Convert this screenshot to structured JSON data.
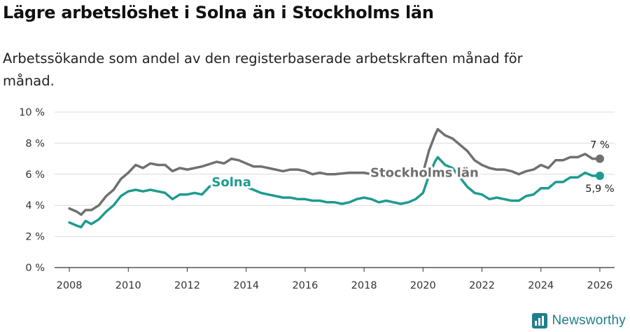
{
  "title": "Lägre arbetslöshet i Solna än i Stockholms län",
  "subtitle": "Arbetssökande som andel av den registerbaserade arbetskraften månad för månad.",
  "brand": {
    "name": "Newsworthy",
    "icon": "newsworthy-logo-icon",
    "color": "#1f7f8a"
  },
  "chart_data": {
    "type": "line",
    "xlim": [
      2007.5,
      2026.5
    ],
    "ylim": [
      0,
      10
    ],
    "x_ticks": [
      2008,
      2010,
      2012,
      2014,
      2016,
      2018,
      2020,
      2022,
      2024,
      2026
    ],
    "y_ticks": [
      0,
      2,
      4,
      6,
      8,
      10
    ],
    "y_tick_labels": [
      "0 %",
      "2 %",
      "4 %",
      "6 %",
      "8 %",
      "10 %"
    ],
    "grid": true,
    "series": [
      {
        "name": "Stockholms län",
        "color": "#707070",
        "end_label": "7 %",
        "points": [
          [
            2008.0,
            3.8
          ],
          [
            2008.25,
            3.6
          ],
          [
            2008.4,
            3.4
          ],
          [
            2008.55,
            3.7
          ],
          [
            2008.75,
            3.7
          ],
          [
            2009.0,
            4.0
          ],
          [
            2009.25,
            4.6
          ],
          [
            2009.5,
            5.0
          ],
          [
            2009.75,
            5.7
          ],
          [
            2010.0,
            6.1
          ],
          [
            2010.25,
            6.6
          ],
          [
            2010.5,
            6.4
          ],
          [
            2010.75,
            6.7
          ],
          [
            2011.0,
            6.6
          ],
          [
            2011.25,
            6.6
          ],
          [
            2011.5,
            6.2
          ],
          [
            2011.75,
            6.4
          ],
          [
            2012.0,
            6.3
          ],
          [
            2012.5,
            6.5
          ],
          [
            2013.0,
            6.8
          ],
          [
            2013.25,
            6.7
          ],
          [
            2013.5,
            7.0
          ],
          [
            2013.75,
            6.9
          ],
          [
            2014.0,
            6.7
          ],
          [
            2014.25,
            6.5
          ],
          [
            2014.5,
            6.5
          ],
          [
            2014.75,
            6.4
          ],
          [
            2015.0,
            6.3
          ],
          [
            2015.25,
            6.2
          ],
          [
            2015.5,
            6.3
          ],
          [
            2015.75,
            6.3
          ],
          [
            2016.0,
            6.2
          ],
          [
            2016.25,
            6.0
          ],
          [
            2016.5,
            6.1
          ],
          [
            2016.75,
            6.0
          ],
          [
            2017.0,
            6.0
          ],
          [
            2017.5,
            6.1
          ],
          [
            2018.0,
            6.1
          ],
          [
            2018.25,
            6.0
          ],
          [
            2018.5,
            5.9
          ],
          [
            2018.75,
            6.0
          ],
          [
            2019.0,
            5.9
          ],
          [
            2019.25,
            5.8
          ],
          [
            2019.5,
            5.9
          ],
          [
            2019.75,
            6.0
          ],
          [
            2020.0,
            6.1
          ],
          [
            2020.2,
            7.5
          ],
          [
            2020.4,
            8.5
          ],
          [
            2020.5,
            8.9
          ],
          [
            2020.75,
            8.5
          ],
          [
            2021.0,
            8.3
          ],
          [
            2021.25,
            7.9
          ],
          [
            2021.5,
            7.5
          ],
          [
            2021.75,
            6.9
          ],
          [
            2022.0,
            6.6
          ],
          [
            2022.25,
            6.4
          ],
          [
            2022.5,
            6.3
          ],
          [
            2022.75,
            6.3
          ],
          [
            2023.0,
            6.2
          ],
          [
            2023.25,
            6.0
          ],
          [
            2023.5,
            6.2
          ],
          [
            2023.75,
            6.3
          ],
          [
            2024.0,
            6.6
          ],
          [
            2024.25,
            6.4
          ],
          [
            2024.5,
            6.9
          ],
          [
            2024.75,
            6.9
          ],
          [
            2025.0,
            7.1
          ],
          [
            2025.25,
            7.1
          ],
          [
            2025.5,
            7.3
          ],
          [
            2025.75,
            7.0
          ],
          [
            2026.0,
            7.0
          ]
        ]
      },
      {
        "name": "Solna",
        "color": "#1e9b8f",
        "end_label": "5,9 %",
        "points": [
          [
            2008.0,
            2.9
          ],
          [
            2008.25,
            2.7
          ],
          [
            2008.4,
            2.6
          ],
          [
            2008.55,
            3.0
          ],
          [
            2008.75,
            2.8
          ],
          [
            2009.0,
            3.1
          ],
          [
            2009.25,
            3.6
          ],
          [
            2009.5,
            4.0
          ],
          [
            2009.75,
            4.6
          ],
          [
            2010.0,
            4.9
          ],
          [
            2010.25,
            5.0
          ],
          [
            2010.5,
            4.9
          ],
          [
            2010.75,
            5.0
          ],
          [
            2011.0,
            4.9
          ],
          [
            2011.25,
            4.8
          ],
          [
            2011.5,
            4.4
          ],
          [
            2011.75,
            4.7
          ],
          [
            2012.0,
            4.7
          ],
          [
            2012.25,
            4.8
          ],
          [
            2012.5,
            4.7
          ],
          [
            2012.75,
            5.2
          ],
          [
            2013.0,
            5.5
          ],
          [
            2013.25,
            5.4
          ],
          [
            2013.5,
            5.5
          ],
          [
            2013.75,
            5.3
          ],
          [
            2014.0,
            5.2
          ],
          [
            2014.25,
            5.0
          ],
          [
            2014.5,
            4.8
          ],
          [
            2014.75,
            4.7
          ],
          [
            2015.0,
            4.6
          ],
          [
            2015.25,
            4.5
          ],
          [
            2015.5,
            4.5
          ],
          [
            2015.75,
            4.4
          ],
          [
            2016.0,
            4.4
          ],
          [
            2016.25,
            4.3
          ],
          [
            2016.5,
            4.3
          ],
          [
            2016.75,
            4.2
          ],
          [
            2017.0,
            4.2
          ],
          [
            2017.25,
            4.1
          ],
          [
            2017.5,
            4.2
          ],
          [
            2017.75,
            4.4
          ],
          [
            2018.0,
            4.5
          ],
          [
            2018.25,
            4.4
          ],
          [
            2018.5,
            4.2
          ],
          [
            2018.75,
            4.3
          ],
          [
            2019.0,
            4.2
          ],
          [
            2019.25,
            4.1
          ],
          [
            2019.5,
            4.2
          ],
          [
            2019.75,
            4.4
          ],
          [
            2020.0,
            4.8
          ],
          [
            2020.2,
            5.9
          ],
          [
            2020.4,
            6.8
          ],
          [
            2020.5,
            7.1
          ],
          [
            2020.75,
            6.6
          ],
          [
            2021.0,
            6.4
          ],
          [
            2021.25,
            5.8
          ],
          [
            2021.5,
            5.2
          ],
          [
            2021.75,
            4.8
          ],
          [
            2022.0,
            4.7
          ],
          [
            2022.25,
            4.4
          ],
          [
            2022.5,
            4.5
          ],
          [
            2022.75,
            4.4
          ],
          [
            2023.0,
            4.3
          ],
          [
            2023.25,
            4.3
          ],
          [
            2023.5,
            4.6
          ],
          [
            2023.75,
            4.7
          ],
          [
            2024.0,
            5.1
          ],
          [
            2024.25,
            5.1
          ],
          [
            2024.5,
            5.5
          ],
          [
            2024.75,
            5.5
          ],
          [
            2025.0,
            5.8
          ],
          [
            2025.25,
            5.8
          ],
          [
            2025.5,
            6.1
          ],
          [
            2025.75,
            5.9
          ],
          [
            2026.0,
            5.9
          ]
        ]
      }
    ]
  }
}
